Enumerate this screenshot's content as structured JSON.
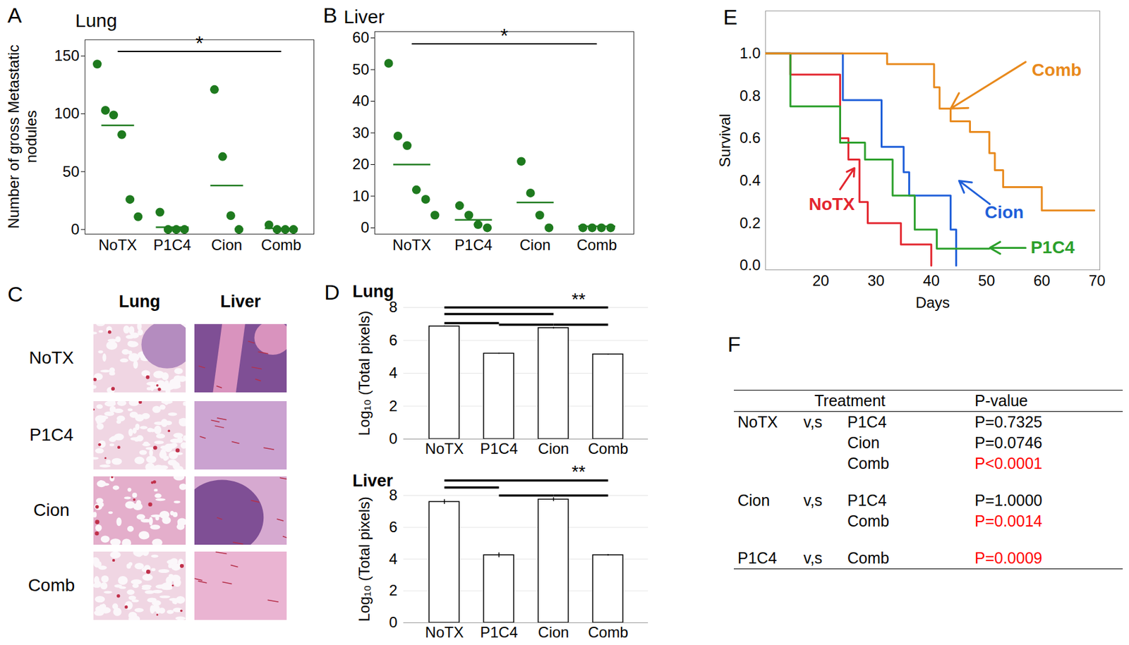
{
  "chart_data": [
    {
      "panel": "A",
      "type": "scatter",
      "title": "Lung",
      "y_label": "Number of gross Metastatic nodules",
      "categories": [
        "NoTX",
        "P1C4",
        "Cion",
        "Comb"
      ],
      "values": [
        [
          143,
          103,
          99,
          82,
          26,
          11
        ],
        [
          15,
          0,
          0,
          0
        ],
        [
          121,
          63,
          12,
          0
        ],
        [
          4,
          0,
          0,
          0
        ]
      ],
      "means": [
        90,
        2,
        38,
        1
      ],
      "color": "#1e7a1e",
      "ylim": [
        -4,
        164
      ],
      "yticks": [
        0,
        50,
        100,
        150
      ],
      "comparisons": [
        [
          "NoTX",
          "Comb"
        ]
      ],
      "significance_label": "*"
    },
    {
      "panel": "B",
      "type": "scatter",
      "title": "Liver",
      "categories": [
        "NoTX",
        "P1C4",
        "Cion",
        "Comb"
      ],
      "values": [
        [
          52,
          29,
          26,
          12,
          9,
          4
        ],
        [
          7,
          4,
          1,
          0
        ],
        [
          21,
          11,
          4,
          0
        ],
        [
          0,
          0,
          0,
          0
        ]
      ],
      "means": [
        20,
        2.5,
        8,
        0.5
      ],
      "color": "#1e7a1e",
      "ylim": [
        -2,
        62
      ],
      "yticks": [
        0,
        10,
        20,
        30,
        40,
        50,
        60
      ],
      "comparisons": [
        [
          "NoTX",
          "Comb"
        ]
      ],
      "significance_label": "*"
    },
    {
      "panel": "D",
      "type": "bar",
      "title": "Lung",
      "y_label": "Log₁₀ (Total pixels)",
      "categories": [
        "NoTX",
        "P1C4",
        "Cion",
        "Comb"
      ],
      "values": [
        6.85,
        5.2,
        6.75,
        5.15
      ],
      "errors": [
        0.03,
        0.03,
        0.05,
        0.03
      ],
      "color": "#ffffff",
      "grid": true,
      "ylim": [
        0,
        8
      ],
      "yticks": [
        0,
        2,
        4,
        6,
        8
      ],
      "comparisons": [
        [
          "NoTX",
          "Comb"
        ],
        [
          "NoTX",
          "Cion"
        ],
        [
          "NoTX",
          "P1C4"
        ],
        [
          "P1C4",
          "Cion"
        ],
        [
          "Cion",
          "Comb"
        ]
      ],
      "significance_label": "**"
    },
    {
      "type": "bar",
      "title": "Liver",
      "y_label": "Log₁₀ (Total pixels)",
      "categories": [
        "NoTX",
        "P1C4",
        "Cion",
        "Comb"
      ],
      "values": [
        7.6,
        4.25,
        7.75,
        4.25
      ],
      "errors": [
        0.15,
        0.15,
        0.12,
        0.05
      ],
      "color": "#ffffff",
      "grid": true,
      "ylim": [
        0,
        8
      ],
      "yticks": [
        0,
        2,
        4,
        6,
        8
      ],
      "comparisons": [
        [
          "NoTX",
          "Comb"
        ],
        [
          "NoTX",
          "P1C4"
        ],
        [
          "P1C4",
          "Cion"
        ],
        [
          "Cion",
          "Comb"
        ]
      ],
      "significance_label": "**"
    },
    {
      "panel": "E",
      "type": "line",
      "line_style": "step",
      "x_label": "Days",
      "y_label": "Survival",
      "xlim": [
        10,
        70.5
      ],
      "xticks": [
        20,
        30,
        40,
        50,
        60,
        70
      ],
      "ylim": [
        -0.02,
        1.2
      ],
      "yticks": [
        {
          "value": 0,
          "label": "0.0"
        },
        {
          "value": 0.2,
          "label": "0.2"
        },
        {
          "value": 0.4,
          "label": "0.4"
        },
        {
          "value": 0.6,
          "label": "0.6"
        },
        {
          "value": 0.8,
          "label": "0.8"
        },
        {
          "value": 1,
          "label": "1.0"
        }
      ],
      "series": [
        {
          "name": "NoTX",
          "color": "#e3262f",
          "x": [
            10,
            14.5,
            23.5,
            25,
            27,
            28.5,
            34.5,
            40
          ],
          "values": [
            1,
            0.9,
            0.6,
            0.5,
            0.3,
            0.2,
            0.1,
            0
          ]
        },
        {
          "name": "Cion",
          "color": "#1f5fd9",
          "x": [
            10,
            24,
            31,
            35,
            36,
            43.5,
            44.5
          ],
          "values": [
            1,
            0.78,
            0.56,
            0.44,
            0.33,
            0.17,
            0
          ]
        },
        {
          "name": "P1C4",
          "color": "#2ca02c",
          "x": [
            10,
            14.5,
            23.5,
            28,
            33,
            37,
            41,
            50.5
          ],
          "values": [
            1,
            0.75,
            0.58,
            0.5,
            0.33,
            0.17,
            0.08,
            0.08
          ]
        },
        {
          "name": "Comb",
          "color": "#e8891c",
          "x": [
            10,
            32,
            40.5,
            41.5,
            43.5,
            47,
            50.5,
            51.5,
            53,
            60,
            69.5
          ],
          "values": [
            1,
            0.95,
            0.84,
            0.74,
            0.68,
            0.63,
            0.53,
            0.45,
            0.37,
            0.26,
            0.26
          ]
        }
      ]
    }
  ],
  "histology": {
    "panel": "C",
    "columns": [
      "Lung",
      "Liver"
    ],
    "rows": [
      "NoTX",
      "P1C4",
      "Cion",
      "Comb"
    ]
  },
  "table": {
    "panel": "F",
    "header": [
      "Treatment",
      "P-value"
    ],
    "groups": [
      [
        {
          "cells": [
            "NoTX",
            "v,s",
            "P1C4",
            "P=0.7325"
          ],
          "color": "#000000"
        },
        {
          "cells": [
            "",
            "",
            "Cion",
            "P=0.0746"
          ],
          "color": "#000000"
        },
        {
          "cells": [
            "",
            "",
            "Comb",
            "P<0.0001"
          ],
          "color": "#ff0000"
        }
      ],
      [
        {
          "cells": [
            "Cion",
            "v,s",
            "P1C4",
            "P=1.0000"
          ],
          "color": "#000000"
        },
        {
          "cells": [
            "",
            "",
            "Comb",
            "P=0.0014"
          ],
          "color": "#ff0000"
        }
      ],
      [
        {
          "cells": [
            "P1C4",
            "v,s",
            "Comb",
            "P=0.0009"
          ],
          "color": "#ff0000"
        }
      ]
    ]
  }
}
